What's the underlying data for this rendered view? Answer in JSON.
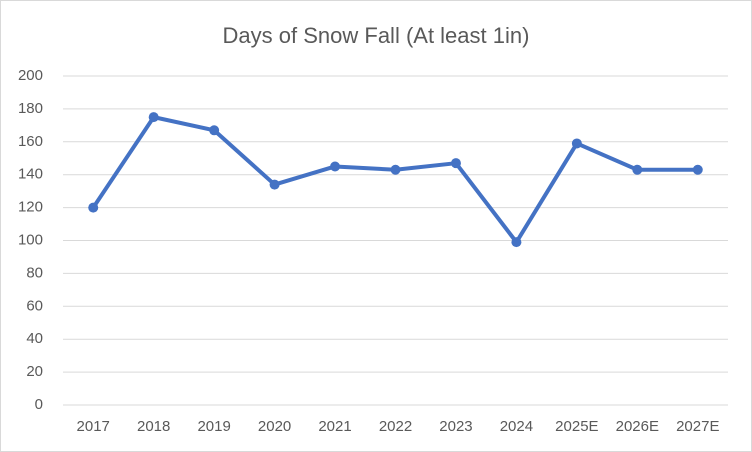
{
  "chart_data": {
    "type": "line",
    "title": "Days of Snow Fall (At least 1in)",
    "categories": [
      "2017",
      "2018",
      "2019",
      "2020",
      "2021",
      "2022",
      "2023",
      "2024",
      "2025E",
      "2026E",
      "2027E"
    ],
    "values": [
      120,
      175,
      167,
      134,
      145,
      143,
      147,
      99,
      159,
      143,
      143
    ],
    "color": "#4472c4",
    "ylim": [
      0,
      200
    ],
    "yticks": [
      0,
      20,
      40,
      60,
      80,
      100,
      120,
      140,
      160,
      180,
      200
    ],
    "grid": true
  }
}
